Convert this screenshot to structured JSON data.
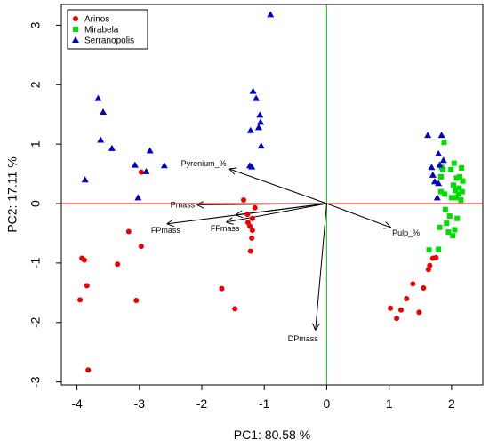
{
  "chart_data": {
    "type": "scatter",
    "title": "",
    "xlabel": "PC1: 80.58 %",
    "ylabel": "PC2: 17.11 %",
    "xlim": [
      -4.25,
      2.5
    ],
    "ylim": [
      -3.05,
      3.35
    ],
    "x_ticks": [
      -4,
      -3,
      -2,
      -1,
      0,
      1,
      2
    ],
    "y_ticks": [
      -3,
      -2,
      -1,
      0,
      1,
      2,
      3
    ],
    "x_tick_labels": [
      "-4",
      "-3",
      "-2",
      "-1",
      "0",
      "1",
      "2"
    ],
    "y_tick_labels": [
      "-3",
      "-2",
      "-1",
      "0",
      "1",
      "2",
      "3"
    ],
    "grid": false,
    "legend_position": "top-left",
    "reference_lines": {
      "horizontal_at_y": 0,
      "vertical_at_x": 0,
      "horizontal_color": "#ff0000",
      "vertical_color": "#00dd00"
    },
    "series": [
      {
        "name": "Arinos",
        "marker": "circle",
        "color": "#ee0000",
        "points": [
          [
            -3.95,
            -1.62
          ],
          [
            -3.92,
            -0.92
          ],
          [
            -3.88,
            -0.95
          ],
          [
            -3.84,
            -1.38
          ],
          [
            -3.82,
            -2.8
          ],
          [
            -3.35,
            -1.02
          ],
          [
            -3.17,
            -0.47
          ],
          [
            -3.05,
            -1.63
          ],
          [
            -2.97,
            -0.72
          ],
          [
            -2.97,
            0.53
          ],
          [
            -1.68,
            -1.43
          ],
          [
            -1.47,
            -1.77
          ],
          [
            -1.33,
            0.06
          ],
          [
            -1.27,
            -0.18
          ],
          [
            -1.26,
            -0.32
          ],
          [
            -1.23,
            -0.38
          ],
          [
            -1.22,
            -0.8
          ],
          [
            -1.2,
            -0.58
          ],
          [
            -1.19,
            -0.45
          ],
          [
            -1.19,
            -0.25
          ],
          [
            -1.15,
            -0.07
          ],
          [
            1.02,
            -1.76
          ],
          [
            1.12,
            -1.93
          ],
          [
            1.19,
            -1.79
          ],
          [
            1.28,
            -1.6
          ],
          [
            1.38,
            -1.35
          ],
          [
            1.48,
            -1.83
          ],
          [
            1.55,
            -1.42
          ],
          [
            1.63,
            -1.11
          ],
          [
            1.65,
            -1.04
          ],
          [
            1.7,
            -0.92
          ],
          [
            1.75,
            -0.91
          ]
        ]
      },
      {
        "name": "Mirabela",
        "marker": "square",
        "color": "#00dd00",
        "points": [
          [
            1.64,
            -0.78
          ],
          [
            1.79,
            -0.77
          ],
          [
            1.81,
            -0.4
          ],
          [
            1.83,
            0.45
          ],
          [
            1.83,
            0.2
          ],
          [
            1.84,
            0.61
          ],
          [
            1.86,
            0.57
          ],
          [
            1.88,
            1.03
          ],
          [
            1.89,
            0.16
          ],
          [
            1.9,
            -0.1
          ],
          [
            1.92,
            -0.33
          ],
          [
            1.95,
            -0.48
          ],
          [
            1.97,
            -0.21
          ],
          [
            1.99,
            0.57
          ],
          [
            2.0,
            0.1
          ],
          [
            2.02,
            -0.54
          ],
          [
            2.03,
            0.31
          ],
          [
            2.04,
            0.68
          ],
          [
            2.05,
            -0.44
          ],
          [
            2.06,
            0.22
          ],
          [
            2.07,
            0.1
          ],
          [
            2.08,
            0.43
          ],
          [
            2.09,
            -0.25
          ],
          [
            2.11,
            0.16
          ],
          [
            2.12,
            0.26
          ],
          [
            2.13,
            0.45
          ],
          [
            2.15,
            0.06
          ],
          [
            2.16,
            0.6
          ],
          [
            2.17,
            0.2
          ],
          [
            2.18,
            0.38
          ]
        ]
      },
      {
        "name": "Serranopolis",
        "marker": "triangle",
        "color": "#0000cc",
        "points": [
          [
            -3.87,
            0.4
          ],
          [
            -3.66,
            1.77
          ],
          [
            -3.62,
            1.07
          ],
          [
            -3.58,
            1.54
          ],
          [
            -3.44,
            0.93
          ],
          [
            -3.07,
            0.65
          ],
          [
            -3.02,
            0.1
          ],
          [
            -2.89,
            0.54
          ],
          [
            -2.83,
            0.89
          ],
          [
            -2.6,
            0.64
          ],
          [
            -1.23,
            0.64
          ],
          [
            -1.22,
            1.23
          ],
          [
            -1.2,
            0.62
          ],
          [
            -1.18,
            1.89
          ],
          [
            -1.13,
            1.77
          ],
          [
            -1.09,
            1.28
          ],
          [
            -1.07,
            1.49
          ],
          [
            -1.06,
            1.37
          ],
          [
            -1.05,
            0.97
          ],
          [
            -0.9,
            3.18
          ],
          [
            1.62,
            1.15
          ],
          [
            1.68,
            0.61
          ],
          [
            1.7,
            0.48
          ],
          [
            1.73,
            0.37
          ],
          [
            1.77,
            0.1
          ],
          [
            1.79,
            0.34
          ],
          [
            1.79,
            0.84
          ],
          [
            1.81,
            0.65
          ],
          [
            1.84,
            1.15
          ],
          [
            1.87,
            0.73
          ]
        ]
      }
    ],
    "arrows": [
      {
        "label": "Pyrenium_%",
        "x": -1.55,
        "y": 0.58
      },
      {
        "label": "Pmass",
        "x": -2.07,
        "y": -0.02
      },
      {
        "label": "FPmass",
        "x": -2.55,
        "y": -0.34
      },
      {
        "label": "FFmass",
        "x": -1.6,
        "y": -0.31
      },
      {
        "label": "",
        "x": -1.45,
        "y": -0.19
      },
      {
        "label": "Pulp_%",
        "x": 1.02,
        "y": -0.4
      },
      {
        "label": "DPmass",
        "x": -0.18,
        "y": -2.12
      }
    ]
  }
}
